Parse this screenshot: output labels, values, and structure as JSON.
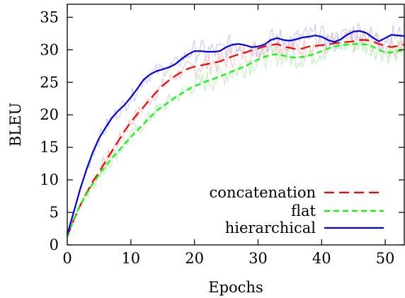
{
  "chart_data": {
    "type": "line",
    "xlabel": "Epochs",
    "ylabel": "BLEU",
    "xlim": [
      0,
      53
    ],
    "ylim": [
      0,
      37
    ],
    "xticks": [
      0,
      10,
      20,
      30,
      40,
      50
    ],
    "yticks": [
      0,
      5,
      10,
      15,
      20,
      25,
      30,
      35
    ],
    "grid": false,
    "legend_position": "bottom-right",
    "series": [
      {
        "name": "concatenation",
        "color": "#ff0000",
        "style": "dashed-long",
        "x": [
          0,
          1,
          2,
          3,
          4,
          5,
          6,
          7,
          8,
          9,
          10,
          11,
          12,
          13,
          14,
          15,
          16,
          17,
          18,
          19,
          20,
          21,
          22,
          23,
          24,
          25,
          26,
          27,
          28,
          29,
          30,
          31,
          32,
          33,
          34,
          35,
          36,
          37,
          38,
          39,
          40,
          41,
          42,
          43,
          44,
          45,
          46,
          47,
          48,
          49,
          50,
          51,
          52,
          53
        ],
        "y": [
          1.3,
          3.8,
          6.0,
          7.9,
          9.7,
          11.2,
          12.8,
          14.4,
          15.9,
          17.5,
          18.9,
          20.1,
          21.2,
          22.4,
          23.5,
          24.5,
          25.3,
          26.0,
          26.6,
          27.1,
          27.4,
          27.6,
          27.8,
          28.0,
          28.2,
          28.6,
          29.0,
          29.3,
          29.6,
          29.9,
          30.2,
          30.5,
          30.7,
          30.9,
          30.5,
          30.3,
          30.1,
          30.2,
          30.5,
          30.6,
          30.7,
          30.8,
          31.0,
          31.1,
          31.2,
          31.3,
          31.5,
          31.5,
          31.3,
          30.9,
          30.6,
          30.4,
          30.6,
          30.8
        ]
      },
      {
        "name": "flat",
        "color": "#00ff00",
        "style": "dashed-short",
        "x": [
          0,
          1,
          2,
          3,
          4,
          5,
          6,
          7,
          8,
          9,
          10,
          11,
          12,
          13,
          14,
          15,
          16,
          17,
          18,
          19,
          20,
          21,
          22,
          23,
          24,
          25,
          26,
          27,
          28,
          29,
          30,
          31,
          32,
          33,
          34,
          35,
          36,
          37,
          38,
          39,
          40,
          41,
          42,
          43,
          44,
          45,
          46,
          47,
          48,
          49,
          50,
          51,
          52,
          53
        ],
        "y": [
          1.2,
          3.9,
          6.1,
          7.8,
          9.4,
          10.8,
          12.1,
          13.3,
          14.4,
          15.5,
          16.6,
          17.6,
          18.6,
          19.6,
          20.6,
          21.3,
          22.0,
          22.7,
          23.3,
          23.9,
          24.4,
          24.8,
          25.2,
          25.5,
          25.9,
          26.3,
          26.7,
          27.1,
          27.5,
          28.0,
          28.5,
          28.9,
          29.2,
          29.3,
          29.1,
          28.9,
          28.8,
          28.9,
          29.1,
          29.4,
          29.8,
          30.2,
          30.5,
          30.7,
          30.8,
          30.9,
          30.9,
          30.8,
          30.5,
          30.0,
          29.6,
          29.6,
          29.8,
          29.9
        ]
      },
      {
        "name": "hierarchical",
        "color": "#0000ee",
        "style": "solid",
        "x": [
          0,
          1,
          2,
          3,
          4,
          5,
          6,
          7,
          8,
          9,
          10,
          11,
          12,
          13,
          14,
          15,
          16,
          17,
          18,
          19,
          20,
          21,
          22,
          23,
          24,
          25,
          26,
          27,
          28,
          29,
          30,
          31,
          32,
          33,
          34,
          35,
          36,
          37,
          38,
          39,
          40,
          41,
          42,
          43,
          44,
          45,
          46,
          47,
          48,
          49,
          50,
          51,
          52,
          53
        ],
        "y": [
          1.6,
          5.0,
          8.5,
          11.5,
          14.2,
          16.4,
          18.0,
          19.5,
          20.6,
          21.5,
          22.7,
          24.0,
          25.4,
          26.2,
          26.7,
          27.0,
          27.3,
          27.8,
          28.6,
          29.3,
          29.8,
          29.8,
          29.7,
          29.7,
          29.8,
          30.4,
          30.8,
          30.9,
          30.7,
          30.4,
          30.5,
          30.8,
          31.5,
          31.8,
          31.5,
          31.4,
          31.6,
          31.9,
          32.0,
          32.2,
          32.0,
          31.5,
          31.2,
          31.6,
          32.3,
          32.8,
          32.9,
          32.6,
          31.9,
          31.3,
          31.8,
          32.3,
          32.2,
          32.1
        ]
      }
    ]
  }
}
